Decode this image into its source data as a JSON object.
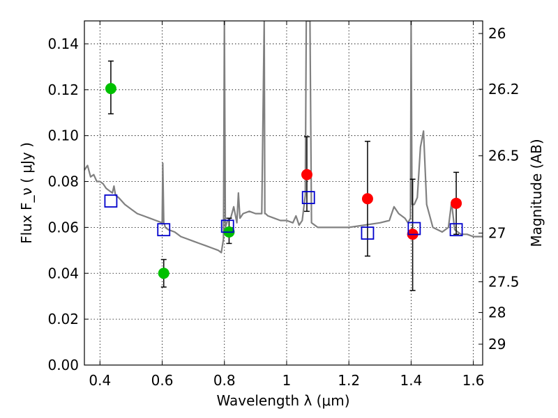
{
  "chart_data": {
    "type": "scatter",
    "xlabel": "Wavelength  λ (μm)",
    "ylabel": "Flux  F_ν  ( μJy )",
    "ylabel_right": "Magnitude (AB)",
    "xlim": [
      0.35,
      1.63
    ],
    "ylim": [
      0.0,
      0.15
    ],
    "grid": true,
    "x_ticks": [
      0.4,
      0.6,
      0.8,
      1.0,
      1.2,
      1.4,
      1.6
    ],
    "x_tick_labels": [
      "0.4",
      "0.6",
      "0.8",
      "1",
      "1.2",
      "1.4",
      "1.6"
    ],
    "y_ticks": [
      0.0,
      0.02,
      0.04,
      0.06,
      0.08,
      0.1,
      0.12,
      0.14
    ],
    "y_tick_labels": [
      "0.00",
      "0.02",
      "0.04",
      "0.06",
      "0.08",
      "0.10",
      "0.12",
      "0.14"
    ],
    "right_ticks": [
      {
        "label": "26",
        "flux": 0.1445
      },
      {
        "label": "26.2",
        "flux": 0.1202
      },
      {
        "label": "26.5",
        "flux": 0.0912
      },
      {
        "label": "27",
        "flux": 0.0575
      },
      {
        "label": "27.5",
        "flux": 0.0363
      },
      {
        "label": "28",
        "flux": 0.0229
      },
      {
        "label": "29",
        "flux": 0.0091
      }
    ],
    "series": [
      {
        "kind": "line",
        "color": "#808080",
        "x": [
          0.35,
          0.36,
          0.37,
          0.38,
          0.39,
          0.4,
          0.41,
          0.42,
          0.43,
          0.44,
          0.445,
          0.45,
          0.46,
          0.48,
          0.5,
          0.52,
          0.54,
          0.56,
          0.58,
          0.6,
          0.602,
          0.605,
          0.608,
          0.61,
          0.62,
          0.64,
          0.66,
          0.68,
          0.7,
          0.72,
          0.74,
          0.76,
          0.78,
          0.79,
          0.797,
          0.8,
          0.803,
          0.81,
          0.82,
          0.83,
          0.84,
          0.845,
          0.85,
          0.86,
          0.88,
          0.9,
          0.92,
          0.928,
          0.93,
          0.932,
          0.94,
          0.96,
          0.98,
          1.0,
          1.02,
          1.03,
          1.04,
          1.05,
          1.06,
          1.063,
          1.068,
          1.075,
          1.08,
          1.1,
          1.15,
          1.2,
          1.25,
          1.3,
          1.33,
          1.345,
          1.36,
          1.38,
          1.39,
          1.398,
          1.4,
          1.403,
          1.41,
          1.42,
          1.43,
          1.44,
          1.45,
          1.47,
          1.5,
          1.52,
          1.53,
          1.54,
          1.56,
          1.58,
          1.6,
          1.63
        ],
        "y": [
          0.085,
          0.087,
          0.082,
          0.083,
          0.08,
          0.08,
          0.079,
          0.077,
          0.076,
          0.075,
          0.078,
          0.074,
          0.073,
          0.07,
          0.068,
          0.066,
          0.065,
          0.064,
          0.063,
          0.062,
          0.088,
          0.062,
          0.061,
          0.06,
          0.059,
          0.058,
          0.056,
          0.055,
          0.054,
          0.053,
          0.052,
          0.051,
          0.05,
          0.049,
          0.055,
          0.15,
          0.06,
          0.063,
          0.064,
          0.069,
          0.062,
          0.075,
          0.064,
          0.066,
          0.067,
          0.066,
          0.066,
          0.15,
          0.066,
          0.066,
          0.065,
          0.064,
          0.063,
          0.063,
          0.062,
          0.065,
          0.061,
          0.063,
          0.074,
          0.15,
          0.15,
          0.15,
          0.062,
          0.06,
          0.06,
          0.06,
          0.061,
          0.062,
          0.063,
          0.069,
          0.066,
          0.064,
          0.062,
          0.064,
          0.15,
          0.07,
          0.07,
          0.073,
          0.095,
          0.102,
          0.07,
          0.06,
          0.058,
          0.06,
          0.071,
          0.059,
          0.057,
          0.057,
          0.056,
          0.056
        ]
      },
      {
        "kind": "points",
        "marker": "circle",
        "color": "#00c000",
        "points": [
          {
            "x": 0.435,
            "y": 0.1205,
            "ylo": 0.1095,
            "yhi": 0.1325
          },
          {
            "x": 0.605,
            "y": 0.04,
            "ylo": 0.034,
            "yhi": 0.046
          },
          {
            "x": 0.815,
            "y": 0.058,
            "ylo": 0.053,
            "yhi": 0.064
          }
        ]
      },
      {
        "kind": "points",
        "marker": "circle",
        "color": "#ff0000",
        "points": [
          {
            "x": 1.065,
            "y": 0.083,
            "ylo": 0.067,
            "yhi": 0.0995
          },
          {
            "x": 1.26,
            "y": 0.0725,
            "ylo": 0.0475,
            "yhi": 0.0975
          },
          {
            "x": 1.405,
            "y": 0.057,
            "ylo": 0.0325,
            "yhi": 0.081
          },
          {
            "x": 1.545,
            "y": 0.0705,
            "ylo": 0.057,
            "yhi": 0.084
          }
        ]
      },
      {
        "kind": "points",
        "marker": "open-square",
        "color": "#0000cc",
        "points": [
          {
            "x": 0.435,
            "y": 0.0715
          },
          {
            "x": 0.605,
            "y": 0.059
          },
          {
            "x": 0.81,
            "y": 0.0605
          },
          {
            "x": 1.07,
            "y": 0.073
          },
          {
            "x": 1.26,
            "y": 0.0575
          },
          {
            "x": 1.41,
            "y": 0.0595
          },
          {
            "x": 1.545,
            "y": 0.059
          }
        ]
      }
    ]
  }
}
